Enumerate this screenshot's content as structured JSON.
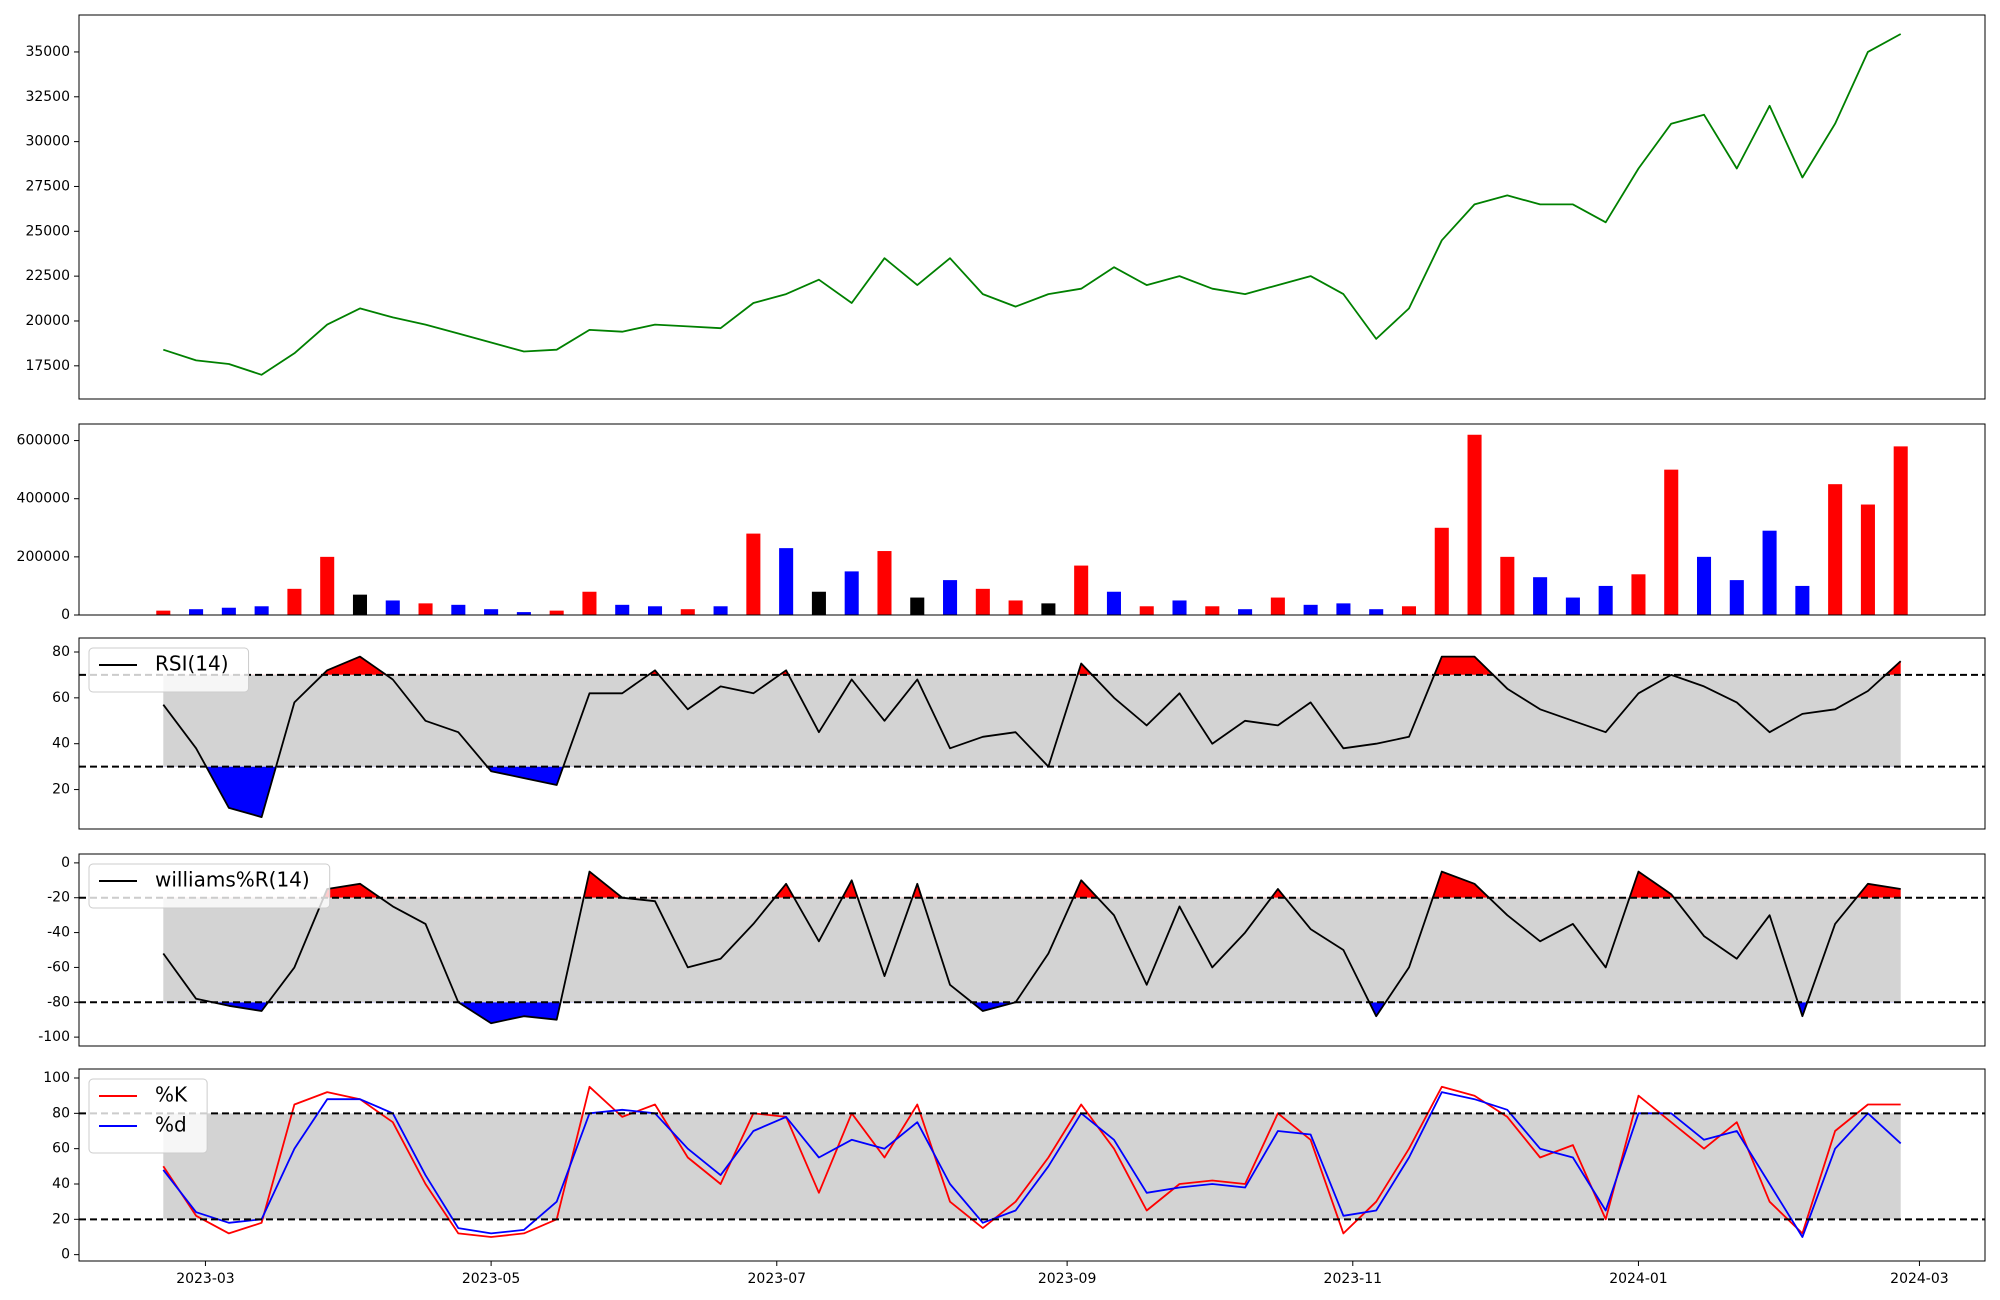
{
  "chart_data": [
    {
      "type": "line",
      "x": [
        "2023-02-20",
        "2023-02-27",
        "2023-03-06",
        "2023-03-13",
        "2023-03-20",
        "2023-03-27",
        "2023-04-03",
        "2023-04-10",
        "2023-04-17",
        "2023-04-24",
        "2023-05-01",
        "2023-05-08",
        "2023-05-15",
        "2023-05-22",
        "2023-05-29",
        "2023-06-05",
        "2023-06-12",
        "2023-06-19",
        "2023-06-26",
        "2023-07-03",
        "2023-07-10",
        "2023-07-17",
        "2023-07-24",
        "2023-07-31",
        "2023-08-07",
        "2023-08-14",
        "2023-08-21",
        "2023-08-28",
        "2023-09-04",
        "2023-09-11",
        "2023-09-18",
        "2023-09-25",
        "2023-10-02",
        "2023-10-09",
        "2023-10-16",
        "2023-10-23",
        "2023-10-30",
        "2023-11-06",
        "2023-11-13",
        "2023-11-20",
        "2023-11-27",
        "2023-12-04",
        "2023-12-11",
        "2023-12-18",
        "2023-12-25",
        "2024-01-01",
        "2024-01-08",
        "2024-01-15",
        "2024-01-22",
        "2024-01-29",
        "2024-02-05",
        "2024-02-12",
        "2024-02-19",
        "2024-02-26"
      ],
      "series": [
        {
          "color": "#008000",
          "values": [
            18400,
            17800,
            17600,
            17000,
            18200,
            19800,
            20700,
            20200,
            19800,
            19300,
            18800,
            18300,
            18400,
            19500,
            19400,
            19800,
            19700,
            19600,
            21000,
            21500,
            22300,
            21000,
            23500,
            22000,
            23500,
            21500,
            20800,
            21500,
            21800,
            23000,
            22000,
            22500,
            21800,
            21500,
            22000,
            22500,
            21500,
            19000,
            20700,
            24500,
            26500,
            27000,
            26500,
            26500,
            25500,
            28500,
            31000,
            31500,
            28500,
            32000,
            28000,
            31000,
            35000,
            36000
          ]
        }
      ],
      "xlim": [
        "2023-02-02",
        "2024-03-15"
      ],
      "ylim": [
        15650,
        37060
      ],
      "yticks": [
        17500,
        20000,
        22500,
        25000,
        27500,
        30000,
        32500,
        35000
      ]
    },
    {
      "type": "bar",
      "x": [
        "2023-02-20",
        "2023-02-27",
        "2023-03-06",
        "2023-03-13",
        "2023-03-20",
        "2023-03-27",
        "2023-04-03",
        "2023-04-10",
        "2023-04-17",
        "2023-04-24",
        "2023-05-01",
        "2023-05-08",
        "2023-05-15",
        "2023-05-22",
        "2023-05-29",
        "2023-06-05",
        "2023-06-12",
        "2023-06-19",
        "2023-06-26",
        "2023-07-03",
        "2023-07-10",
        "2023-07-17",
        "2023-07-24",
        "2023-07-31",
        "2023-08-07",
        "2023-08-14",
        "2023-08-21",
        "2023-08-28",
        "2023-09-04",
        "2023-09-11",
        "2023-09-18",
        "2023-09-25",
        "2023-10-02",
        "2023-10-09",
        "2023-10-16",
        "2023-10-23",
        "2023-10-30",
        "2023-11-06",
        "2023-11-13",
        "2023-11-20",
        "2023-11-27",
        "2023-12-04",
        "2023-12-11",
        "2023-12-18",
        "2023-12-25",
        "2024-01-01",
        "2024-01-08",
        "2024-01-15",
        "2024-01-22",
        "2024-01-29",
        "2024-02-05",
        "2024-02-12",
        "2024-02-19",
        "2024-02-26"
      ],
      "values": [
        15000,
        20000,
        25000,
        30000,
        90000,
        200000,
        70000,
        50000,
        40000,
        35000,
        20000,
        10000,
        15000,
        80000,
        35000,
        30000,
        20000,
        30000,
        280000,
        230000,
        80000,
        150000,
        220000,
        60000,
        120000,
        90000,
        50000,
        40000,
        170000,
        80000,
        30000,
        50000,
        30000,
        20000,
        60000,
        35000,
        40000,
        20000,
        30000,
        300000,
        620000,
        200000,
        130000,
        60000,
        100000,
        140000,
        500000,
        200000,
        120000,
        290000,
        100000,
        450000,
        380000,
        580000
      ],
      "colors": [
        "#ff0000",
        "#0000ff",
        "#0000ff",
        "#0000ff",
        "#ff0000",
        "#ff0000",
        "#000000",
        "#0000ff",
        "#ff0000",
        "#0000ff",
        "#0000ff",
        "#0000ff",
        "#ff0000",
        "#ff0000",
        "#0000ff",
        "#0000ff",
        "#ff0000",
        "#0000ff",
        "#ff0000",
        "#0000ff",
        "#000000",
        "#0000ff",
        "#ff0000",
        "#000000",
        "#0000ff",
        "#ff0000",
        "#ff0000",
        "#000000",
        "#ff0000",
        "#0000ff",
        "#ff0000",
        "#0000ff",
        "#ff0000",
        "#0000ff",
        "#ff0000",
        "#0000ff",
        "#0000ff",
        "#0000ff",
        "#ff0000",
        "#ff0000",
        "#ff0000",
        "#ff0000",
        "#0000ff",
        "#0000ff",
        "#0000ff",
        "#ff0000",
        "#ff0000",
        "#0000ff",
        "#0000ff",
        "#0000ff",
        "#0000ff",
        "#ff0000",
        "#ff0000",
        "#ff0000"
      ],
      "xlim": [
        "2023-02-02",
        "2024-03-15"
      ],
      "ylim": [
        0,
        657000
      ],
      "yticks": [
        0,
        200000,
        400000,
        600000
      ]
    },
    {
      "type": "line",
      "x": [
        "2023-02-20",
        "2023-02-27",
        "2023-03-06",
        "2023-03-13",
        "2023-03-20",
        "2023-03-27",
        "2023-04-03",
        "2023-04-10",
        "2023-04-17",
        "2023-04-24",
        "2023-05-01",
        "2023-05-08",
        "2023-05-15",
        "2023-05-22",
        "2023-05-29",
        "2023-06-05",
        "2023-06-12",
        "2023-06-19",
        "2023-06-26",
        "2023-07-03",
        "2023-07-10",
        "2023-07-17",
        "2023-07-24",
        "2023-07-31",
        "2023-08-07",
        "2023-08-14",
        "2023-08-21",
        "2023-08-28",
        "2023-09-04",
        "2023-09-11",
        "2023-09-18",
        "2023-09-25",
        "2023-10-02",
        "2023-10-09",
        "2023-10-16",
        "2023-10-23",
        "2023-10-30",
        "2023-11-06",
        "2023-11-13",
        "2023-11-20",
        "2023-11-27",
        "2023-12-04",
        "2023-12-11",
        "2023-12-18",
        "2023-12-25",
        "2024-01-01",
        "2024-01-08",
        "2024-01-15",
        "2024-01-22",
        "2024-01-29",
        "2024-02-05",
        "2024-02-12",
        "2024-02-19",
        "2024-02-26"
      ],
      "series": [
        {
          "name": "RSI(14)",
          "color": "#000000",
          "values": [
            57,
            38,
            12,
            8,
            58,
            72,
            78,
            68,
            50,
            45,
            28,
            25,
            22,
            62,
            62,
            72,
            55,
            65,
            62,
            72,
            45,
            68,
            50,
            68,
            38,
            43,
            45,
            30,
            75,
            60,
            48,
            62,
            40,
            50,
            48,
            58,
            38,
            40,
            43,
            78,
            78,
            64,
            55,
            50,
            45,
            62,
            70,
            65,
            58,
            45,
            53,
            55,
            63,
            76
          ]
        }
      ],
      "hlines": [
        30,
        70
      ],
      "band_color": "#d3d3d3",
      "over_color": "#ff0000",
      "under_color": "#0000ff",
      "xlim": [
        "2023-02-02",
        "2024-03-15"
      ],
      "ylim": [
        2.8,
        86.1
      ],
      "yticks": [
        20,
        40,
        60,
        80
      ]
    },
    {
      "type": "line",
      "x": [
        "2023-02-20",
        "2023-02-27",
        "2023-03-06",
        "2023-03-13",
        "2023-03-20",
        "2023-03-27",
        "2023-04-03",
        "2023-04-10",
        "2023-04-17",
        "2023-04-24",
        "2023-05-01",
        "2023-05-08",
        "2023-05-15",
        "2023-05-22",
        "2023-05-29",
        "2023-06-05",
        "2023-06-12",
        "2023-06-19",
        "2023-06-26",
        "2023-07-03",
        "2023-07-10",
        "2023-07-17",
        "2023-07-24",
        "2023-07-31",
        "2023-08-07",
        "2023-08-14",
        "2023-08-21",
        "2023-08-28",
        "2023-09-04",
        "2023-09-11",
        "2023-09-18",
        "2023-09-25",
        "2023-10-02",
        "2023-10-09",
        "2023-10-16",
        "2023-10-23",
        "2023-10-30",
        "2023-11-06",
        "2023-11-13",
        "2023-11-20",
        "2023-11-27",
        "2023-12-04",
        "2023-12-11",
        "2023-12-18",
        "2023-12-25",
        "2024-01-01",
        "2024-01-08",
        "2024-01-15",
        "2024-01-22",
        "2024-01-29",
        "2024-02-05",
        "2024-02-12",
        "2024-02-19",
        "2024-02-26"
      ],
      "series": [
        {
          "name": "williams%R(14)",
          "color": "#000000",
          "values": [
            -52,
            -78,
            -82,
            -85,
            -60,
            -15,
            -12,
            -25,
            -35,
            -80,
            -92,
            -88,
            -90,
            -5,
            -20,
            -22,
            -60,
            -55,
            -35,
            -12,
            -45,
            -10,
            -65,
            -12,
            -70,
            -85,
            -80,
            -52,
            -10,
            -30,
            -70,
            -25,
            -60,
            -40,
            -15,
            -38,
            -50,
            -88,
            -60,
            -5,
            -12,
            -30,
            -45,
            -35,
            -60,
            -5,
            -18,
            -42,
            -55,
            -30,
            -88,
            -35,
            -12,
            -15
          ]
        }
      ],
      "hlines": [
        -80,
        -20
      ],
      "band_color": "#d3d3d3",
      "over_color": "#ff0000",
      "under_color": "#0000ff",
      "xlim": [
        "2023-02-02",
        "2024-03-15"
      ],
      "ylim": [
        -105.1,
        5.1
      ],
      "yticks": [
        -100,
        -80,
        -60,
        -40,
        -20,
        0
      ]
    },
    {
      "type": "line",
      "x": [
        "2023-02-20",
        "2023-02-27",
        "2023-03-06",
        "2023-03-13",
        "2023-03-20",
        "2023-03-27",
        "2023-04-03",
        "2023-04-10",
        "2023-04-17",
        "2023-04-24",
        "2023-05-01",
        "2023-05-08",
        "2023-05-15",
        "2023-05-22",
        "2023-05-29",
        "2023-06-05",
        "2023-06-12",
        "2023-06-19",
        "2023-06-26",
        "2023-07-03",
        "2023-07-10",
        "2023-07-17",
        "2023-07-24",
        "2023-07-31",
        "2023-08-07",
        "2023-08-14",
        "2023-08-21",
        "2023-08-28",
        "2023-09-04",
        "2023-09-11",
        "2023-09-18",
        "2023-09-25",
        "2023-10-02",
        "2023-10-09",
        "2023-10-16",
        "2023-10-23",
        "2023-10-30",
        "2023-11-06",
        "2023-11-13",
        "2023-11-20",
        "2023-11-27",
        "2023-12-04",
        "2023-12-11",
        "2023-12-18",
        "2023-12-25",
        "2024-01-01",
        "2024-01-08",
        "2024-01-15",
        "2024-01-22",
        "2024-01-29",
        "2024-02-05",
        "2024-02-12",
        "2024-02-19",
        "2024-02-26"
      ],
      "series": [
        {
          "name": "%K",
          "color": "#ff0000",
          "values": [
            50,
            22,
            12,
            18,
            85,
            92,
            88,
            75,
            40,
            12,
            10,
            12,
            20,
            95,
            78,
            85,
            55,
            40,
            80,
            78,
            35,
            80,
            55,
            85,
            30,
            15,
            30,
            55,
            85,
            60,
            25,
            40,
            42,
            40,
            80,
            65,
            12,
            30,
            60,
            95,
            90,
            78,
            55,
            62,
            20,
            90,
            75,
            60,
            75,
            30,
            12,
            70,
            85,
            85
          ]
        },
        {
          "name": "%d",
          "color": "#0000ff",
          "values": [
            48,
            24,
            18,
            20,
            60,
            88,
            88,
            80,
            45,
            15,
            12,
            14,
            30,
            80,
            82,
            80,
            60,
            45,
            70,
            78,
            55,
            65,
            60,
            75,
            40,
            18,
            25,
            50,
            80,
            65,
            35,
            38,
            40,
            38,
            70,
            68,
            22,
            25,
            55,
            92,
            88,
            82,
            60,
            55,
            25,
            80,
            80,
            65,
            70,
            40,
            10,
            60,
            80,
            63
          ]
        }
      ],
      "hlines": [
        20,
        80
      ],
      "band_color": "#d3d3d3",
      "xlim": [
        "2023-02-02",
        "2024-03-15"
      ],
      "ylim": [
        -3.6,
        105.1
      ],
      "yticks": [
        0,
        20,
        40,
        60,
        80,
        100
      ],
      "xticks": [
        {
          "value": "2023-03-01",
          "label": "2023-03"
        },
        {
          "value": "2023-05-01",
          "label": "2023-05"
        },
        {
          "value": "2023-07-01",
          "label": "2023-07"
        },
        {
          "value": "2023-09-01",
          "label": "2023-09"
        },
        {
          "value": "2023-11-01",
          "label": "2023-11"
        },
        {
          "value": "2024-01-01",
          "label": "2024-01"
        },
        {
          "value": "2024-03-01",
          "label": "2024-03"
        }
      ]
    }
  ]
}
